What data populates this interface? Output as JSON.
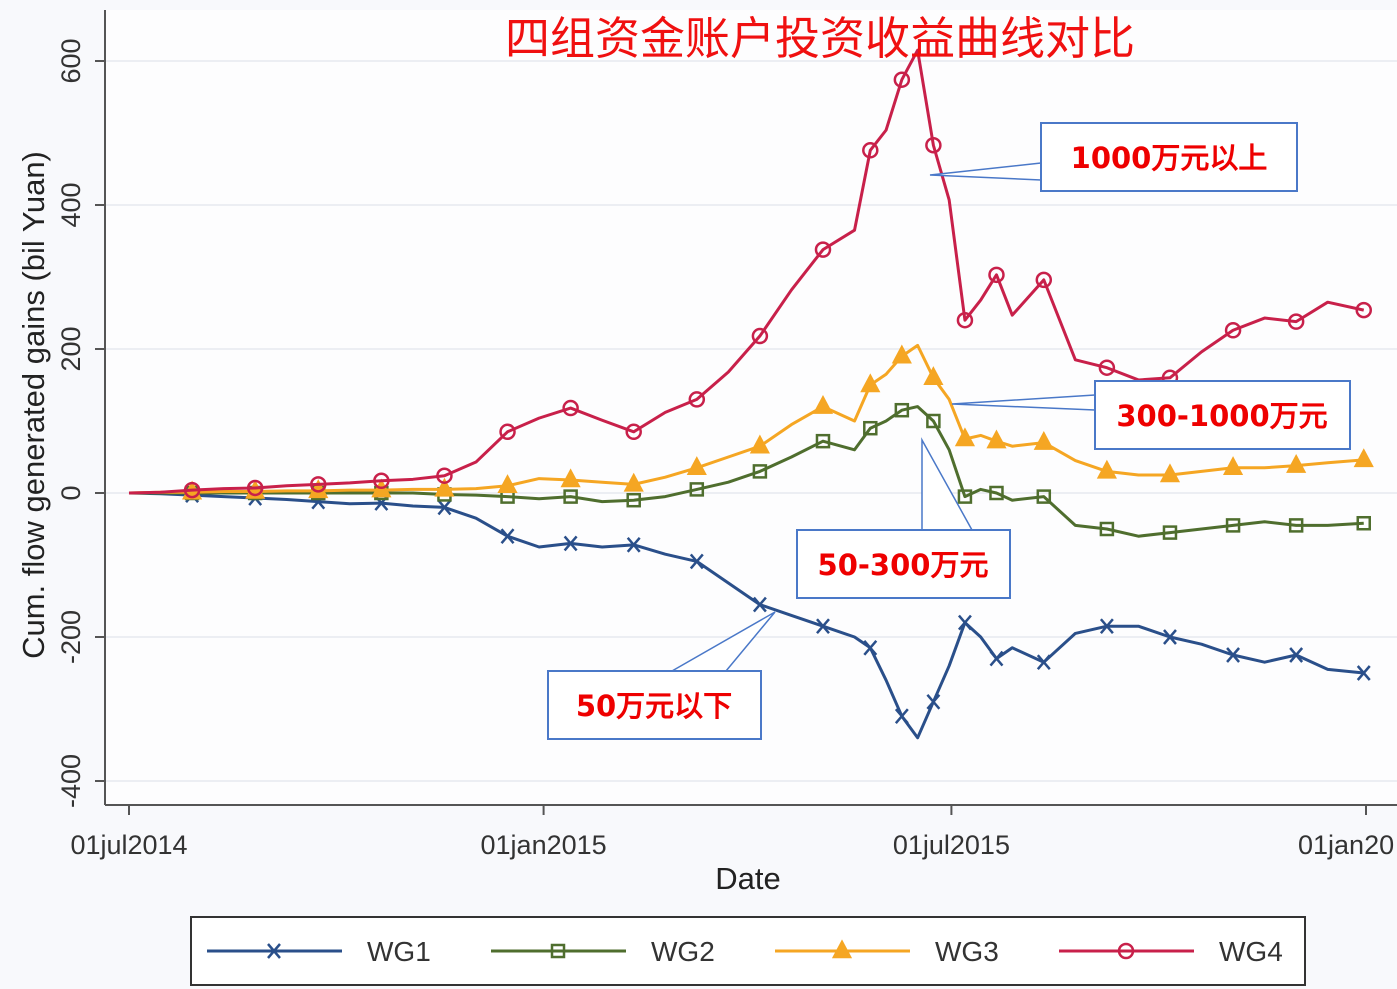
{
  "chart_data": {
    "type": "line",
    "title": "四组资金账户投资收益曲线对比",
    "xlabel": "Date",
    "ylabel": "Cum. flow generated gains (bil Yuan)",
    "xlim": [
      "2014-07-01",
      "2016-01-01"
    ],
    "ylim": [
      -400,
      600
    ],
    "x_ticks": [
      {
        "date": "2014-07-01",
        "label": "01jul2014"
      },
      {
        "date": "2015-01-01",
        "label": "01jan2015"
      },
      {
        "date": "2015-07-01",
        "label": "01jul2015"
      },
      {
        "date": "2016-01-01",
        "label": "01jan20"
      }
    ],
    "y_ticks": [
      {
        "value": 600,
        "label": "600"
      },
      {
        "value": 400,
        "label": "400"
      },
      {
        "value": 200,
        "label": "200"
      },
      {
        "value": 0,
        "label": "0"
      },
      {
        "value": -200,
        "label": "-200"
      },
      {
        "value": -400,
        "label": "-400"
      }
    ],
    "grid": true,
    "legend_position": "bottom",
    "x": [
      "2014-07-01",
      "2014-07-15",
      "2014-07-29",
      "2014-08-12",
      "2014-08-26",
      "2014-09-09",
      "2014-09-23",
      "2014-10-07",
      "2014-10-21",
      "2014-11-04",
      "2014-11-18",
      "2014-12-02",
      "2014-12-16",
      "2014-12-30",
      "2015-01-13",
      "2015-01-27",
      "2015-02-10",
      "2015-02-24",
      "2015-03-10",
      "2015-03-24",
      "2015-04-07",
      "2015-04-21",
      "2015-05-05",
      "2015-05-19",
      "2015-05-26",
      "2015-06-02",
      "2015-06-09",
      "2015-06-16",
      "2015-06-23",
      "2015-06-30",
      "2015-07-07",
      "2015-07-14",
      "2015-07-21",
      "2015-07-28",
      "2015-08-11",
      "2015-08-25",
      "2015-09-08",
      "2015-09-22",
      "2015-10-06",
      "2015-10-20",
      "2015-11-03",
      "2015-11-17",
      "2015-12-01",
      "2015-12-15",
      "2015-12-31"
    ],
    "series": [
      {
        "name": "WG1",
        "color": "#2a4f8a",
        "marker": "x",
        "values": [
          0,
          -1,
          -3,
          -5,
          -7,
          -9,
          -12,
          -15,
          -14,
          -18,
          -20,
          -35,
          -60,
          -75,
          -70,
          -75,
          -72,
          -85,
          -95,
          -125,
          -155,
          -170,
          -185,
          -200,
          -215,
          -260,
          -310,
          -340,
          -290,
          -240,
          -180,
          -200,
          -230,
          -215,
          -235,
          -195,
          -185,
          -185,
          -200,
          -210,
          -225,
          -235,
          -225,
          -245,
          -250
        ]
      },
      {
        "name": "WG2",
        "color": "#4f6e2e",
        "marker": "square",
        "values": [
          0,
          0,
          0,
          0,
          0,
          0,
          0,
          0,
          0,
          0,
          -2,
          -3,
          -5,
          -8,
          -5,
          -12,
          -10,
          -5,
          5,
          15,
          30,
          50,
          72,
          60,
          90,
          100,
          115,
          120,
          100,
          60,
          -5,
          5,
          0,
          -10,
          -5,
          -45,
          -50,
          -60,
          -55,
          -50,
          -45,
          -40,
          -45,
          -45,
          -42
        ]
      },
      {
        "name": "WG3",
        "color": "#f5a623",
        "marker": "triangle",
        "values": [
          0,
          1,
          1,
          2,
          2,
          3,
          3,
          4,
          4,
          5,
          5,
          6,
          10,
          20,
          18,
          15,
          12,
          22,
          35,
          50,
          65,
          95,
          120,
          100,
          150,
          165,
          190,
          205,
          160,
          130,
          75,
          80,
          72,
          65,
          70,
          45,
          30,
          25,
          25,
          30,
          35,
          35,
          38,
          42,
          46
        ]
      },
      {
        "name": "WG4",
        "color": "#c8204a",
        "marker": "circle",
        "values": [
          0,
          1,
          4,
          6,
          7,
          10,
          12,
          14,
          17,
          19,
          24,
          43,
          85,
          104,
          118,
          101,
          85,
          112,
          130,
          168,
          218,
          282,
          338,
          365,
          476,
          504,
          574,
          615,
          483,
          407,
          240,
          268,
          303,
          247,
          296,
          185,
          174,
          157,
          160,
          196,
          226,
          243,
          238,
          265,
          254
        ]
      }
    ]
  },
  "annotations": [
    {
      "text": "1000万元以上",
      "series": "WG4"
    },
    {
      "text": "300-1000万元",
      "series": "WG3"
    },
    {
      "text": "50-300万元",
      "series": "WG2"
    },
    {
      "text": "50万元以下",
      "series": "WG1"
    }
  ]
}
